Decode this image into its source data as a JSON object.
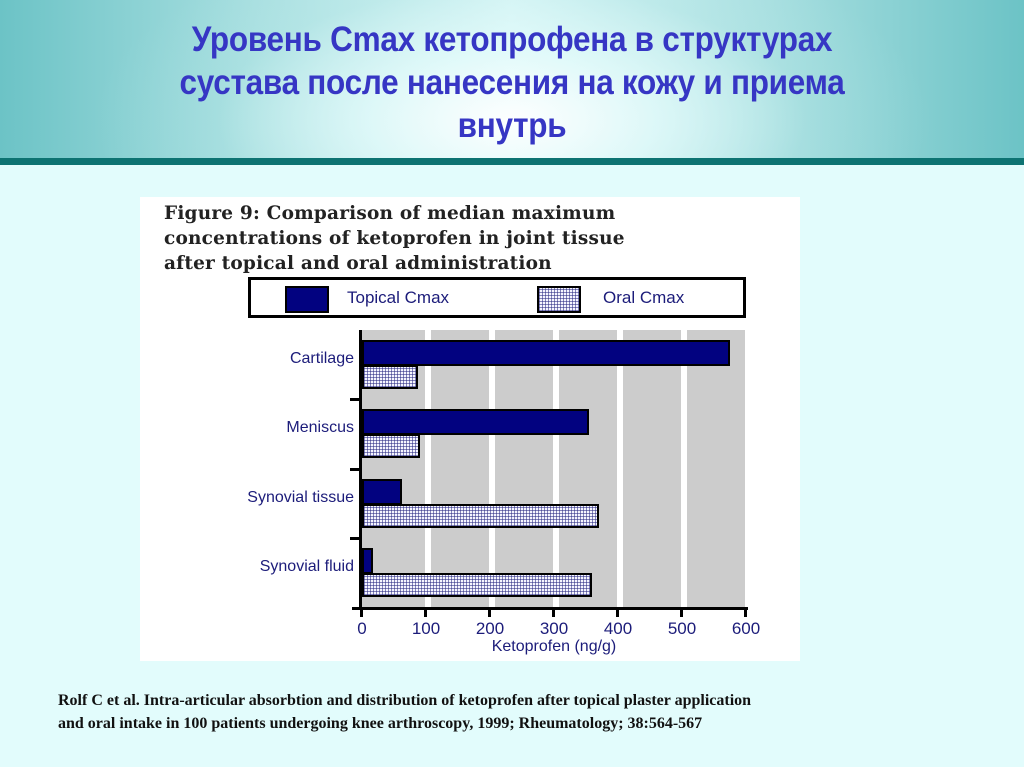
{
  "slide": {
    "title_lines": [
      "Уровень Cmax кетопрофена в структурах",
      "сустава после нанесения на кожу и приема",
      "внутрь"
    ],
    "citation_lines": [
      "Rolf C et al. Intra-articular absorbtion and distribution of ketoprofen after topical plaster application",
      "and oral intake in 100 patients undergoing knee arthroscopy, 1999; Rheumatology; 38:564-567"
    ]
  },
  "figure": {
    "caption_lines": [
      "Figure 9: Comparison of median maximum",
      "concentrations of ketoprofen in joint tissue",
      "after topical and oral administration"
    ],
    "legend": [
      {
        "label": "Topical Cmax",
        "icon": "solid-navy-swatch"
      },
      {
        "label": "Oral Cmax",
        "icon": "hatched-swatch"
      }
    ],
    "x_ticks": [
      "0",
      "100",
      "200",
      "300",
      "400",
      "500",
      "600"
    ],
    "x_title": "Ketoprofen (ng/g)"
  },
  "colors": {
    "title": "#3636c4",
    "topical": "#020280",
    "oral_pattern": "#282882",
    "plot_band": "#cccccc",
    "divider": "#0d7372",
    "background": "#e2fcfc"
  },
  "chart_data": {
    "type": "bar",
    "orientation": "horizontal",
    "title": "Figure 9: Comparison of median maximum concentrations of ketoprofen in joint tissue after topical and oral administration",
    "categories": [
      "Cartilage",
      "Meniscus",
      "Synovial tissue",
      "Synovial fluid"
    ],
    "series": [
      {
        "name": "Topical Cmax",
        "values": [
          575,
          355,
          62,
          17
        ]
      },
      {
        "name": "Oral Cmax",
        "values": [
          88,
          90,
          370,
          360
        ]
      }
    ],
    "xlabel": "Ketoprofen (ng/g)",
    "ylabel": "",
    "xlim": [
      0,
      600
    ],
    "x_ticks": [
      0,
      100,
      200,
      300,
      400,
      500,
      600
    ],
    "grid": "alternating vertical gray bands",
    "legend_position": "top"
  }
}
